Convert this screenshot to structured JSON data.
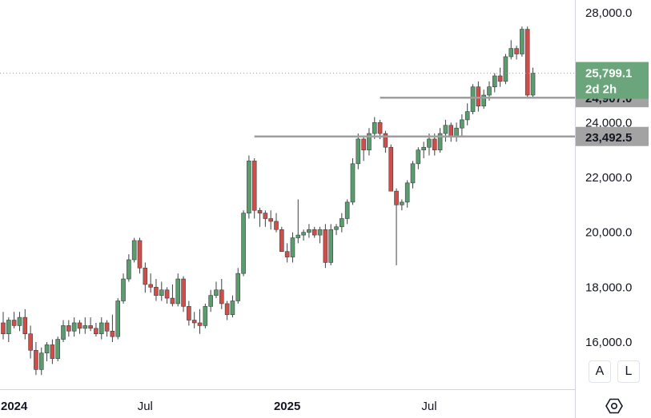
{
  "chart_data": {
    "type": "candlestick",
    "interval": "weekly",
    "ylim": [
      14400,
      28400
    ],
    "yticks": [
      {
        "value": 16000,
        "label": "16,000.0"
      },
      {
        "value": 18000,
        "label": "18,000.0"
      },
      {
        "value": 20000,
        "label": "20,000.0"
      },
      {
        "value": 22000,
        "label": "22,000.0"
      },
      {
        "value": 24000,
        "label": "24,000.0"
      },
      {
        "value": 26000,
        "label": "26,000.0"
      },
      {
        "value": 28000,
        "label": "28,000.0"
      }
    ],
    "xticks": [
      {
        "bar": 0,
        "label": "2024",
        "major": true
      },
      {
        "bar": 26,
        "label": "Jul",
        "major": false
      },
      {
        "bar": 52,
        "label": "2025",
        "major": true
      },
      {
        "bar": 78,
        "label": "Jul",
        "major": false
      }
    ],
    "candles": [
      [
        16700,
        17100,
        16100,
        16300
      ],
      [
        16300,
        16900,
        16000,
        16800
      ],
      [
        16800,
        17100,
        16500,
        16600
      ],
      [
        16600,
        17100,
        16400,
        16900
      ],
      [
        16900,
        17200,
        16100,
        16300
      ],
      [
        16300,
        16600,
        15400,
        15700
      ],
      [
        15700,
        16000,
        14800,
        15000
      ],
      [
        15000,
        15800,
        14800,
        15600
      ],
      [
        15600,
        16000,
        15300,
        15900
      ],
      [
        15900,
        16100,
        15200,
        15400
      ],
      [
        15400,
        16200,
        15300,
        16100
      ],
      [
        16100,
        16800,
        16000,
        16600
      ],
      [
        16600,
        16800,
        16200,
        16400
      ],
      [
        16400,
        16900,
        16200,
        16700
      ],
      [
        16700,
        16800,
        16300,
        16500
      ],
      [
        16500,
        16900,
        16300,
        16600
      ],
      [
        16600,
        16900,
        16400,
        16500
      ],
      [
        16500,
        16700,
        16200,
        16300
      ],
      [
        16300,
        16900,
        16100,
        16700
      ],
      [
        16700,
        16800,
        16200,
        16400
      ],
      [
        16400,
        17000,
        16000,
        16200
      ],
      [
        16200,
        17600,
        16100,
        17500
      ],
      [
        17500,
        18500,
        17400,
        18300
      ],
      [
        18300,
        19200,
        18200,
        19000
      ],
      [
        19000,
        19800,
        18900,
        19700
      ],
      [
        19700,
        19800,
        18500,
        18700
      ],
      [
        18700,
        18900,
        17800,
        18100
      ],
      [
        18100,
        18500,
        17800,
        18000
      ],
      [
        18000,
        18300,
        17500,
        17700
      ],
      [
        17700,
        18200,
        17500,
        17900
      ],
      [
        17900,
        18000,
        17400,
        17600
      ],
      [
        17600,
        18100,
        17300,
        17400
      ],
      [
        17400,
        18500,
        17300,
        18300
      ],
      [
        18300,
        18400,
        17100,
        17300
      ],
      [
        17300,
        17500,
        16600,
        16800
      ],
      [
        16800,
        17100,
        16500,
        16700
      ],
      [
        16700,
        17200,
        16300,
        16600
      ],
      [
        16600,
        17400,
        16500,
        17300
      ],
      [
        17300,
        17900,
        17100,
        17700
      ],
      [
        17700,
        18200,
        17600,
        17900
      ],
      [
        17900,
        18300,
        17200,
        17400
      ],
      [
        17400,
        17500,
        16800,
        17000
      ],
      [
        17000,
        17700,
        16900,
        17500
      ],
      [
        17500,
        18700,
        17400,
        18500
      ],
      [
        18500,
        20800,
        18400,
        20700
      ],
      [
        20700,
        22800,
        20500,
        22600
      ],
      [
        22600,
        22700,
        20500,
        20800
      ],
      [
        20800,
        20900,
        20200,
        20700
      ],
      [
        20700,
        20800,
        20200,
        20500
      ],
      [
        20500,
        20800,
        20100,
        20400
      ],
      [
        20400,
        20700,
        20000,
        20100
      ],
      [
        20100,
        20200,
        19300,
        19300
      ],
      [
        19300,
        19600,
        18900,
        19100
      ],
      [
        19100,
        20000,
        18900,
        19800
      ],
      [
        19800,
        21200,
        19600,
        19900
      ],
      [
        19900,
        20100,
        19700,
        20000
      ],
      [
        20000,
        20300,
        19800,
        20100
      ],
      [
        20100,
        20200,
        19800,
        19900
      ],
      [
        19900,
        20200,
        19600,
        20100
      ],
      [
        20100,
        20300,
        18700,
        18900
      ],
      [
        18900,
        20300,
        18800,
        20100
      ],
      [
        20100,
        20300,
        19900,
        20200
      ],
      [
        20200,
        20700,
        20000,
        20500
      ],
      [
        20500,
        21200,
        20300,
        21100
      ],
      [
        21100,
        22700,
        21000,
        22500
      ],
      [
        22500,
        23600,
        22300,
        23400
      ],
      [
        23400,
        23500,
        22600,
        23000
      ],
      [
        23000,
        23800,
        22800,
        23600
      ],
      [
        23600,
        24200,
        23400,
        24000
      ],
      [
        24000,
        24100,
        23400,
        23600
      ],
      [
        23600,
        23700,
        22900,
        23100
      ],
      [
        23100,
        23200,
        21500,
        21500
      ],
      [
        21500,
        21600,
        18800,
        21000
      ],
      [
        21000,
        21200,
        20800,
        21100
      ],
      [
        21100,
        21900,
        20900,
        21800
      ],
      [
        21800,
        22600,
        21600,
        22500
      ],
      [
        22500,
        23100,
        22300,
        23000
      ],
      [
        23000,
        23300,
        22700,
        23100
      ],
      [
        23100,
        23600,
        22800,
        23400
      ],
      [
        23400,
        23600,
        22800,
        23000
      ],
      [
        23000,
        23800,
        22900,
        23600
      ],
      [
        23600,
        24100,
        23300,
        23900
      ],
      [
        23900,
        24000,
        23300,
        23500
      ],
      [
        23500,
        24000,
        23300,
        23800
      ],
      [
        23800,
        24300,
        23500,
        24100
      ],
      [
        24100,
        24700,
        23900,
        24400
      ],
      [
        24400,
        25400,
        24300,
        25300
      ],
      [
        25300,
        25500,
        24400,
        24600
      ],
      [
        24600,
        25200,
        24500,
        25000
      ],
      [
        25000,
        25500,
        24800,
        25300
      ],
      [
        25300,
        25800,
        25100,
        25700
      ],
      [
        25700,
        26000,
        25300,
        25500
      ],
      [
        25500,
        26500,
        25400,
        26400
      ],
      [
        26400,
        27000,
        26300,
        26700
      ],
      [
        26700,
        26800,
        26300,
        26500
      ],
      [
        26500,
        27500,
        26400,
        27400
      ],
      [
        27400,
        27500,
        24900,
        25000
      ],
      [
        25000,
        26000,
        24900,
        25800
      ]
    ],
    "levels": [
      {
        "name": "resistance",
        "value": 24907.0,
        "label": "24,907.0",
        "from_bar": 69
      },
      {
        "name": "support",
        "value": 23492.5,
        "label": "23,492.5",
        "from_bar": 46
      }
    ],
    "last_price": {
      "value": 25799.1,
      "label": "25,799.1",
      "countdown": "2d 2h"
    },
    "colors": {
      "up": "#5a9c6e",
      "down": "#cf4e4a",
      "wick": "#3c4043",
      "level_line": "#9e9e9e",
      "level_tag": "#a3a3a3",
      "last_price_tag": "#6aa57c",
      "grid_dots": "#9e9e9e"
    }
  },
  "axis_buttons": {
    "auto": "A",
    "log": "L"
  },
  "settings_icon": "settings-hexagon-icon"
}
